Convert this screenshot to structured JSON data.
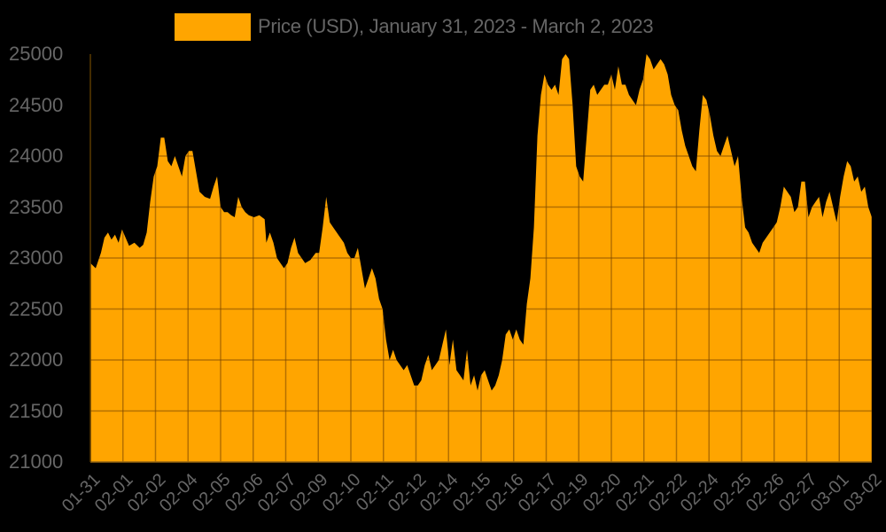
{
  "legend": {
    "label": "Price (USD), January 31, 2023 - March 2, 2023",
    "color": "#FFA500"
  },
  "colors": {
    "background": "#000000",
    "fill": "#FFA500",
    "grid": "#9C6A14",
    "text": "#666666"
  },
  "chart_data": {
    "type": "area",
    "title": "Price (USD), January 31, 2023 - March 2, 2023",
    "xlabel": "",
    "ylabel": "",
    "ylim": [
      21000,
      25000
    ],
    "yticks": [
      25000,
      24500,
      24000,
      23500,
      23000,
      22500,
      22000,
      21500,
      21000
    ],
    "xticks": [
      "01-31",
      "02-01",
      "02-02",
      "02-04",
      "02-05",
      "02-06",
      "02-07",
      "02-09",
      "02-10",
      "02-11",
      "02-12",
      "02-14",
      "02-15",
      "02-16",
      "02-17",
      "02-19",
      "02-20",
      "02-21",
      "02-22",
      "02-24",
      "02-25",
      "02-26",
      "02-27",
      "03-01",
      "03-02"
    ],
    "grid": true,
    "legend_position": "top",
    "series": [
      {
        "name": "Price (USD)",
        "points": [
          [
            0,
            22950
          ],
          [
            0.3,
            22900
          ],
          [
            0.6,
            23050
          ],
          [
            0.8,
            23200
          ],
          [
            1.0,
            23250
          ],
          [
            1.2,
            23180
          ],
          [
            1.4,
            23230
          ],
          [
            1.6,
            23150
          ],
          [
            1.8,
            23280
          ],
          [
            2.0,
            23200
          ],
          [
            2.2,
            23120
          ],
          [
            2.5,
            23150
          ],
          [
            2.8,
            23100
          ],
          [
            3.0,
            23130
          ],
          [
            3.2,
            23250
          ],
          [
            3.4,
            23550
          ],
          [
            3.6,
            23800
          ],
          [
            3.8,
            23900
          ],
          [
            4.0,
            24180
          ],
          [
            4.2,
            24180
          ],
          [
            4.4,
            23950
          ],
          [
            4.6,
            23900
          ],
          [
            4.8,
            24000
          ],
          [
            5.0,
            23900
          ],
          [
            5.2,
            23800
          ],
          [
            5.4,
            24000
          ],
          [
            5.6,
            24050
          ],
          [
            5.8,
            24050
          ],
          [
            6.0,
            23850
          ],
          [
            6.2,
            23650
          ],
          [
            6.5,
            23600
          ],
          [
            6.8,
            23580
          ],
          [
            7.0,
            23700
          ],
          [
            7.2,
            23800
          ],
          [
            7.4,
            23500
          ],
          [
            7.6,
            23450
          ],
          [
            7.8,
            23450
          ],
          [
            8.0,
            23420
          ],
          [
            8.2,
            23400
          ],
          [
            8.4,
            23600
          ],
          [
            8.6,
            23500
          ],
          [
            8.8,
            23450
          ],
          [
            9.0,
            23420
          ],
          [
            9.3,
            23400
          ],
          [
            9.6,
            23420
          ],
          [
            9.9,
            23380
          ],
          [
            10.0,
            23150
          ],
          [
            10.2,
            23250
          ],
          [
            10.4,
            23150
          ],
          [
            10.6,
            23000
          ],
          [
            10.8,
            22950
          ],
          [
            11.0,
            22900
          ],
          [
            11.2,
            22950
          ],
          [
            11.4,
            23100
          ],
          [
            11.6,
            23200
          ],
          [
            11.8,
            23050
          ],
          [
            12.0,
            23000
          ],
          [
            12.2,
            22950
          ],
          [
            12.5,
            22980
          ],
          [
            12.8,
            23050
          ],
          [
            13.0,
            23050
          ],
          [
            13.2,
            23300
          ],
          [
            13.4,
            23600
          ],
          [
            13.6,
            23350
          ],
          [
            13.8,
            23300
          ],
          [
            14.0,
            23250
          ],
          [
            14.2,
            23200
          ],
          [
            14.4,
            23150
          ],
          [
            14.6,
            23050
          ],
          [
            14.8,
            23000
          ],
          [
            15.0,
            23000
          ],
          [
            15.2,
            23100
          ],
          [
            15.4,
            22900
          ],
          [
            15.6,
            22700
          ],
          [
            15.8,
            22800
          ],
          [
            16.0,
            22900
          ],
          [
            16.2,
            22800
          ],
          [
            16.4,
            22600
          ],
          [
            16.6,
            22500
          ],
          [
            16.8,
            22200
          ],
          [
            17.0,
            22000
          ],
          [
            17.2,
            22100
          ],
          [
            17.4,
            22000
          ],
          [
            17.6,
            21950
          ],
          [
            17.8,
            21900
          ],
          [
            18.0,
            21950
          ],
          [
            18.2,
            21850
          ],
          [
            18.4,
            21750
          ],
          [
            18.6,
            21750
          ],
          [
            18.8,
            21800
          ],
          [
            19.0,
            21950
          ],
          [
            19.2,
            22050
          ],
          [
            19.4,
            21900
          ],
          [
            19.6,
            21950
          ],
          [
            19.8,
            22000
          ],
          [
            20.0,
            22150
          ],
          [
            20.2,
            22300
          ],
          [
            20.4,
            21950
          ],
          [
            20.6,
            22200
          ],
          [
            20.8,
            21900
          ],
          [
            21.0,
            21850
          ],
          [
            21.2,
            21800
          ],
          [
            21.4,
            22100
          ],
          [
            21.6,
            21750
          ],
          [
            21.8,
            21850
          ],
          [
            22.0,
            21700
          ],
          [
            22.2,
            21850
          ],
          [
            22.4,
            21900
          ],
          [
            22.6,
            21800
          ],
          [
            22.8,
            21700
          ],
          [
            23.0,
            21750
          ],
          [
            23.2,
            21850
          ],
          [
            23.4,
            22000
          ],
          [
            23.6,
            22250
          ],
          [
            23.8,
            22300
          ],
          [
            24.0,
            22200
          ],
          [
            24.2,
            22300
          ],
          [
            24.4,
            22200
          ],
          [
            24.6,
            22150
          ],
          [
            24.8,
            22550
          ],
          [
            25.0,
            22800
          ],
          [
            25.2,
            23300
          ],
          [
            25.4,
            24200
          ],
          [
            25.6,
            24600
          ],
          [
            25.8,
            24800
          ],
          [
            26.0,
            24700
          ],
          [
            26.2,
            24650
          ],
          [
            26.4,
            24700
          ],
          [
            26.6,
            24600
          ],
          [
            26.8,
            24950
          ],
          [
            27.0,
            25000
          ],
          [
            27.2,
            24950
          ],
          [
            27.4,
            24500
          ],
          [
            27.6,
            23900
          ],
          [
            27.8,
            23800
          ],
          [
            28.0,
            23750
          ],
          [
            28.2,
            24200
          ],
          [
            28.4,
            24650
          ],
          [
            28.6,
            24700
          ],
          [
            28.8,
            24600
          ],
          [
            29.0,
            24650
          ],
          [
            29.2,
            24700
          ],
          [
            29.4,
            24700
          ],
          [
            29.6,
            24800
          ],
          [
            29.8,
            24650
          ],
          [
            30.0,
            24880
          ],
          [
            30.2,
            24700
          ],
          [
            30.4,
            24700
          ],
          [
            30.6,
            24600
          ],
          [
            30.8,
            24550
          ],
          [
            31.0,
            24500
          ],
          [
            31.2,
            24650
          ],
          [
            31.4,
            24750
          ],
          [
            31.6,
            25000
          ],
          [
            31.8,
            24950
          ],
          [
            32.0,
            24850
          ],
          [
            32.2,
            24900
          ],
          [
            32.4,
            24950
          ],
          [
            32.6,
            24900
          ],
          [
            32.8,
            24800
          ],
          [
            33.0,
            24600
          ],
          [
            33.2,
            24500
          ],
          [
            33.4,
            24450
          ],
          [
            33.6,
            24250
          ],
          [
            33.8,
            24100
          ],
          [
            34.0,
            24000
          ],
          [
            34.2,
            23900
          ],
          [
            34.4,
            23850
          ],
          [
            34.6,
            24250
          ],
          [
            34.8,
            24600
          ],
          [
            35.0,
            24550
          ],
          [
            35.2,
            24400
          ],
          [
            35.4,
            24200
          ],
          [
            35.6,
            24050
          ],
          [
            35.8,
            24000
          ],
          [
            36.0,
            24100
          ],
          [
            36.2,
            24200
          ],
          [
            36.4,
            24050
          ],
          [
            36.6,
            23900
          ],
          [
            36.8,
            24000
          ],
          [
            37.0,
            23600
          ],
          [
            37.2,
            23300
          ],
          [
            37.4,
            23250
          ],
          [
            37.6,
            23150
          ],
          [
            37.8,
            23100
          ],
          [
            38.0,
            23050
          ],
          [
            38.2,
            23150
          ],
          [
            38.4,
            23200
          ],
          [
            38.6,
            23250
          ],
          [
            38.8,
            23300
          ],
          [
            39.0,
            23350
          ],
          [
            39.2,
            23500
          ],
          [
            39.4,
            23700
          ],
          [
            39.6,
            23650
          ],
          [
            39.8,
            23600
          ],
          [
            40.0,
            23450
          ],
          [
            40.2,
            23500
          ],
          [
            40.4,
            23750
          ],
          [
            40.6,
            23750
          ],
          [
            40.8,
            23400
          ],
          [
            41.0,
            23500
          ],
          [
            41.2,
            23550
          ],
          [
            41.4,
            23600
          ],
          [
            41.6,
            23400
          ],
          [
            41.8,
            23550
          ],
          [
            42.0,
            23650
          ],
          [
            42.2,
            23500
          ],
          [
            42.4,
            23350
          ],
          [
            42.6,
            23600
          ],
          [
            42.8,
            23800
          ],
          [
            43.0,
            23950
          ],
          [
            43.2,
            23900
          ],
          [
            43.4,
            23750
          ],
          [
            43.6,
            23800
          ],
          [
            43.8,
            23650
          ],
          [
            44.0,
            23700
          ],
          [
            44.2,
            23500
          ],
          [
            44.4,
            23400
          ]
        ]
      }
    ]
  }
}
